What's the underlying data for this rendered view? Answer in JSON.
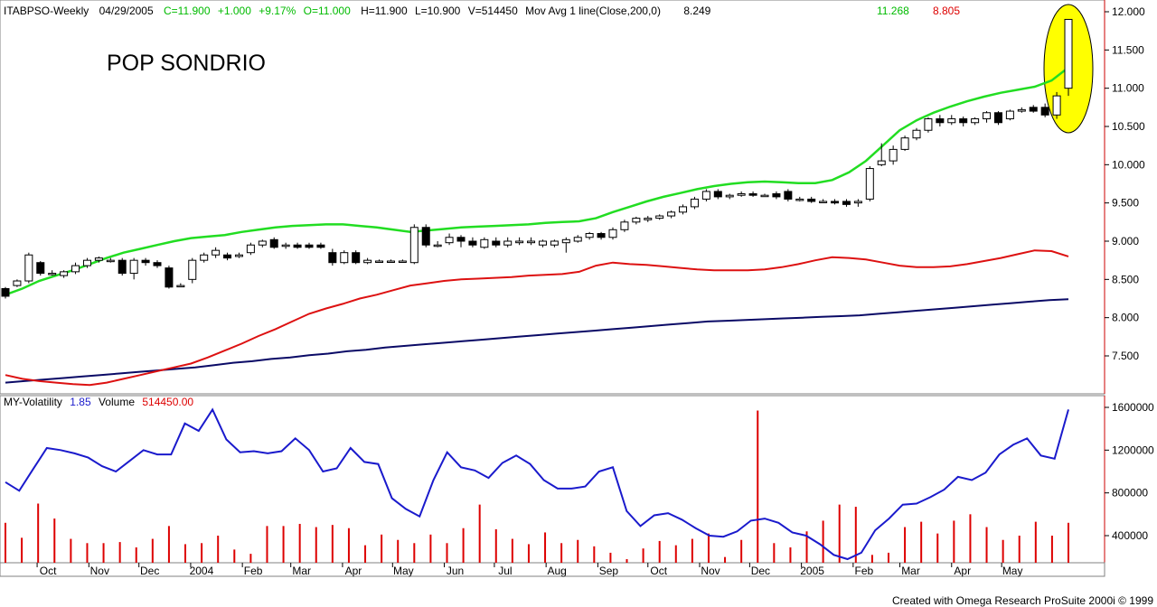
{
  "header": {
    "symbol": "ITABPSO-Weekly",
    "date": "04/29/2005",
    "close": "C=11.900",
    "change": "+1.000",
    "change_pct": "+9.17%",
    "open": "O=11.000",
    "high": "H=11.900",
    "low": "L=10.900",
    "volume": "V=514450",
    "indicator": "Mov Avg 1 line(Close,200,0)",
    "ma200_value": "8.249",
    "ma_green_value": "11.268",
    "ma_red_value": "8.805"
  },
  "title": "POP SONDRIO",
  "lower_header": {
    "label": "MY-Volatility",
    "vol_value": "1.85",
    "volume_label": "Volume",
    "volume_value": "514450.00"
  },
  "footer": "Created with Omega Research ProSuite 2000i © 1999",
  "colors": {
    "green_ma": "#22dd22",
    "red_ma": "#dd1111",
    "navy_ma": "#0a0a66",
    "volatility": "#1a1acc",
    "volume": "#dd0000",
    "highlight": "#ffff00",
    "axis_text": "#000000",
    "header_green": "#00bb00",
    "header_red": "#dd0000"
  },
  "chart_data": [
    {
      "type": "candlestick",
      "title": "POP SONDRIO",
      "x_tick_labels": [
        "Oct",
        "Nov",
        "Dec",
        "2004",
        "Feb",
        "Mar",
        "Apr",
        "May",
        "Jun",
        "Jul",
        "Aug",
        "Sep",
        "Oct",
        "Nov",
        "Dec",
        "2005",
        "Feb",
        "Mar",
        "Apr",
        "May"
      ],
      "y_tick_labels": [
        "12.000",
        "11.500",
        "11.000",
        "10.500",
        "10.000",
        "9.500",
        "9.000",
        "8.500",
        "8.000",
        "7.500"
      ],
      "ylim": [
        7.0,
        12.1
      ],
      "start_week": "2003-09-12",
      "candles": [
        [
          8.38,
          8.28,
          8.4,
          8.25
        ],
        [
          8.42,
          8.48,
          8.5,
          8.4
        ],
        [
          8.48,
          8.82,
          8.85,
          8.45
        ],
        [
          8.72,
          8.58,
          8.74,
          8.55
        ],
        [
          8.58,
          8.58,
          8.62,
          8.55
        ],
        [
          8.55,
          8.6,
          8.62,
          8.52
        ],
        [
          8.6,
          8.68,
          8.72,
          8.57
        ],
        [
          8.68,
          8.75,
          8.78,
          8.65
        ],
        [
          8.75,
          8.78,
          8.8,
          8.72
        ],
        [
          8.75,
          8.75,
          8.78,
          8.72
        ],
        [
          8.75,
          8.58,
          8.78,
          8.55
        ],
        [
          8.58,
          8.75,
          8.78,
          8.5
        ],
        [
          8.75,
          8.72,
          8.78,
          8.68
        ],
        [
          8.72,
          8.68,
          8.75,
          8.65
        ],
        [
          8.65,
          8.4,
          8.68,
          8.38
        ],
        [
          8.42,
          8.42,
          8.45,
          8.4
        ],
        [
          8.5,
          8.75,
          8.78,
          8.45
        ],
        [
          8.75,
          8.82,
          8.85,
          8.72
        ],
        [
          8.82,
          8.88,
          8.92,
          8.78
        ],
        [
          8.82,
          8.78,
          8.85,
          8.75
        ],
        [
          8.8,
          8.82,
          8.85,
          8.78
        ],
        [
          8.85,
          8.95,
          8.98,
          8.82
        ],
        [
          8.95,
          9.0,
          9.02,
          8.92
        ],
        [
          9.02,
          8.92,
          9.05,
          8.9
        ],
        [
          8.95,
          8.95,
          8.98,
          8.9
        ],
        [
          8.95,
          8.92,
          8.98,
          8.9
        ],
        [
          8.95,
          8.92,
          8.98,
          8.9
        ],
        [
          8.95,
          8.92,
          8.98,
          8.9
        ],
        [
          8.85,
          8.72,
          8.9,
          8.68
        ],
        [
          8.72,
          8.85,
          8.88,
          8.7
        ],
        [
          8.85,
          8.72,
          8.88,
          8.7
        ],
        [
          8.72,
          8.75,
          8.78,
          8.7
        ],
        [
          8.74,
          8.74,
          8.76,
          8.72
        ],
        [
          8.74,
          8.74,
          8.76,
          8.72
        ],
        [
          8.74,
          8.74,
          8.76,
          8.72
        ],
        [
          8.72,
          9.18,
          9.22,
          8.7
        ],
        [
          9.18,
          8.95,
          9.22,
          8.92
        ],
        [
          8.95,
          8.95,
          9.0,
          8.92
        ],
        [
          8.98,
          9.05,
          9.1,
          8.95
        ],
        [
          9.05,
          9.0,
          9.08,
          8.92
        ],
        [
          9.0,
          8.95,
          9.05,
          8.92
        ],
        [
          8.92,
          9.02,
          9.05,
          8.9
        ],
        [
          9.0,
          8.95,
          9.05,
          8.92
        ],
        [
          8.95,
          9.0,
          9.05,
          8.92
        ],
        [
          8.98,
          9.0,
          9.05,
          8.95
        ],
        [
          8.98,
          9.0,
          9.05,
          8.95
        ],
        [
          8.95,
          9.0,
          9.02,
          8.92
        ],
        [
          8.95,
          9.0,
          9.02,
          8.92
        ],
        [
          8.98,
          9.02,
          9.05,
          8.85
        ],
        [
          9.0,
          9.05,
          9.08,
          8.98
        ],
        [
          9.05,
          9.1,
          9.12,
          9.02
        ],
        [
          9.1,
          9.05,
          9.12,
          9.02
        ],
        [
          9.05,
          9.15,
          9.18,
          9.02
        ],
        [
          9.15,
          9.25,
          9.28,
          9.12
        ],
        [
          9.25,
          9.3,
          9.32,
          9.22
        ],
        [
          9.28,
          9.3,
          9.33,
          9.25
        ],
        [
          9.3,
          9.33,
          9.35,
          9.28
        ],
        [
          9.33,
          9.38,
          9.4,
          9.3
        ],
        [
          9.38,
          9.45,
          9.48,
          9.35
        ],
        [
          9.45,
          9.55,
          9.58,
          9.42
        ],
        [
          9.55,
          9.65,
          9.68,
          9.52
        ],
        [
          9.65,
          9.58,
          9.68,
          9.55
        ],
        [
          9.58,
          9.6,
          9.62,
          9.55
        ],
        [
          9.6,
          9.62,
          9.65,
          9.58
        ],
        [
          9.62,
          9.6,
          9.65,
          9.58
        ],
        [
          9.6,
          9.6,
          9.62,
          9.58
        ],
        [
          9.62,
          9.58,
          9.65,
          9.55
        ],
        [
          9.65,
          9.55,
          9.68,
          9.52
        ],
        [
          9.55,
          9.55,
          9.58,
          9.52
        ],
        [
          9.55,
          9.52,
          9.58,
          9.5
        ],
        [
          9.52,
          9.52,
          9.55,
          9.5
        ],
        [
          9.52,
          9.5,
          9.55,
          9.48
        ],
        [
          9.52,
          9.48,
          9.55,
          9.45
        ],
        [
          9.5,
          9.52,
          9.55,
          9.45
        ],
        [
          9.55,
          9.95,
          9.98,
          9.52
        ],
        [
          10.0,
          10.05,
          10.28,
          9.98
        ],
        [
          10.05,
          10.2,
          10.25,
          10.0
        ],
        [
          10.2,
          10.35,
          10.38,
          10.18
        ],
        [
          10.35,
          10.45,
          10.48,
          10.32
        ],
        [
          10.45,
          10.6,
          10.62,
          10.42
        ],
        [
          10.6,
          10.55,
          10.65,
          10.5
        ],
        [
          10.55,
          10.6,
          10.65,
          10.52
        ],
        [
          10.6,
          10.55,
          10.63,
          10.5
        ],
        [
          10.55,
          10.6,
          10.62,
          10.52
        ],
        [
          10.6,
          10.68,
          10.7,
          10.55
        ],
        [
          10.68,
          10.55,
          10.7,
          10.52
        ],
        [
          10.6,
          10.7,
          10.72,
          10.58
        ],
        [
          10.7,
          10.72,
          10.75,
          10.68
        ],
        [
          10.75,
          10.7,
          10.78,
          10.68
        ],
        [
          10.75,
          10.65,
          10.8,
          10.62
        ],
        [
          10.65,
          10.9,
          10.95,
          10.6
        ],
        [
          11.0,
          11.9,
          11.9,
          10.9
        ]
      ],
      "ma_green": [
        8.3,
        8.38,
        8.48,
        8.55,
        8.62,
        8.7,
        8.78,
        8.85,
        8.9,
        8.95,
        9.0,
        9.04,
        9.06,
        9.08,
        9.12,
        9.15,
        9.18,
        9.2,
        9.21,
        9.22,
        9.22,
        9.2,
        9.18,
        9.15,
        9.12,
        9.14,
        9.16,
        9.18,
        9.19,
        9.2,
        9.21,
        9.22,
        9.24,
        9.25,
        9.26,
        9.3,
        9.38,
        9.45,
        9.52,
        9.58,
        9.63,
        9.68,
        9.72,
        9.75,
        9.77,
        9.78,
        9.77,
        9.76,
        9.76,
        9.8,
        9.9,
        10.05,
        10.25,
        10.45,
        10.58,
        10.68,
        10.76,
        10.83,
        10.89,
        10.94,
        10.98,
        11.02,
        11.1,
        11.27
      ],
      "ma_red": [
        7.25,
        7.2,
        7.17,
        7.15,
        7.13,
        7.12,
        7.15,
        7.2,
        7.25,
        7.3,
        7.35,
        7.4,
        7.48,
        7.57,
        7.66,
        7.76,
        7.85,
        7.95,
        8.05,
        8.12,
        8.18,
        8.25,
        8.3,
        8.36,
        8.42,
        8.45,
        8.48,
        8.5,
        8.51,
        8.52,
        8.53,
        8.55,
        8.56,
        8.57,
        8.6,
        8.68,
        8.72,
        8.7,
        8.69,
        8.67,
        8.65,
        8.63,
        8.62,
        8.62,
        8.62,
        8.63,
        8.66,
        8.7,
        8.75,
        8.79,
        8.78,
        8.76,
        8.72,
        8.68,
        8.66,
        8.66,
        8.67,
        8.7,
        8.74,
        8.78,
        8.83,
        8.88,
        8.87,
        8.8
      ],
      "ma_navy": [
        7.15,
        7.17,
        7.19,
        7.21,
        7.23,
        7.25,
        7.27,
        7.29,
        7.31,
        7.33,
        7.35,
        7.38,
        7.41,
        7.43,
        7.46,
        7.48,
        7.51,
        7.53,
        7.56,
        7.58,
        7.61,
        7.63,
        7.65,
        7.67,
        7.69,
        7.71,
        7.73,
        7.75,
        7.77,
        7.79,
        7.81,
        7.83,
        7.85,
        7.87,
        7.89,
        7.91,
        7.93,
        7.95,
        7.96,
        7.97,
        7.98,
        7.99,
        8.0,
        8.01,
        8.02,
        8.03,
        8.05,
        8.07,
        8.09,
        8.11,
        8.13,
        8.15,
        8.17,
        8.19,
        8.21,
        8.23,
        8.24
      ]
    },
    {
      "type": "line_and_bar",
      "title": "MY-Volatility",
      "y_tick_labels": [
        "1600000",
        "1200000",
        "800000",
        "400000"
      ],
      "ylim": [
        150000,
        1650000
      ],
      "volatility": [
        900000,
        820000,
        1020000,
        1220000,
        1200000,
        1170000,
        1130000,
        1050000,
        1000000,
        1100000,
        1200000,
        1160000,
        1160000,
        1450000,
        1380000,
        1580000,
        1300000,
        1180000,
        1190000,
        1170000,
        1190000,
        1310000,
        1200000,
        1000000,
        1030000,
        1220000,
        1090000,
        1070000,
        750000,
        650000,
        580000,
        920000,
        1180000,
        1040000,
        1010000,
        940000,
        1080000,
        1150000,
        1070000,
        920000,
        840000,
        840000,
        860000,
        1000000,
        1040000,
        630000,
        490000,
        590000,
        610000,
        550000,
        470000,
        400000,
        390000,
        440000,
        540000,
        560000,
        520000,
        430000,
        400000,
        320000,
        220000,
        180000,
        240000,
        450000,
        560000,
        690000,
        700000,
        760000,
        830000,
        950000,
        920000,
        990000,
        1160000,
        1250000,
        1310000,
        1150000,
        1120000,
        1580000
      ],
      "volume": [
        520000,
        380000,
        700000,
        560000,
        370000,
        330000,
        330000,
        340000,
        290000,
        370000,
        490000,
        320000,
        330000,
        400000,
        270000,
        230000,
        490000,
        490000,
        510000,
        480000,
        500000,
        470000,
        310000,
        410000,
        360000,
        330000,
        410000,
        330000,
        470000,
        690000,
        460000,
        370000,
        320000,
        430000,
        330000,
        360000,
        300000,
        240000,
        180000,
        280000,
        350000,
        310000,
        370000,
        420000,
        200000,
        360000,
        1570000,
        330000,
        290000,
        440000,
        540000,
        690000,
        670000,
        220000,
        240000,
        480000,
        530000,
        420000,
        540000,
        600000,
        480000,
        360000,
        400000,
        530000,
        400000,
        520000
      ]
    }
  ]
}
